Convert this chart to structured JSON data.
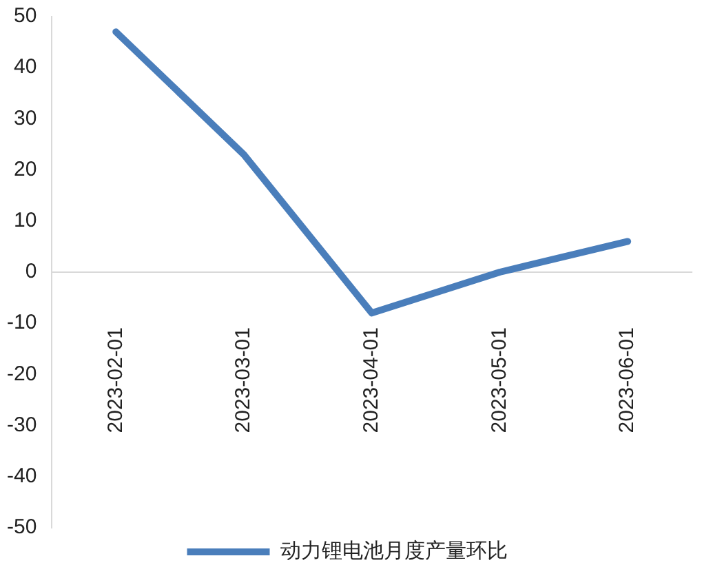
{
  "chart_data": {
    "type": "line",
    "categories": [
      "2023-02-01",
      "2023-03-01",
      "2023-04-01",
      "2023-05-01",
      "2023-06-01"
    ],
    "series": [
      {
        "name": "动力锂电池月度产量环比",
        "color": "#4a7ebb",
        "values": [
          47,
          23,
          -8,
          0,
          6
        ]
      }
    ],
    "ylim": [
      -50,
      50
    ],
    "yticks": [
      -50,
      -40,
      -30,
      -20,
      -10,
      0,
      10,
      20,
      30,
      40,
      50
    ],
    "legend": "bottom",
    "marker": "none",
    "line_style": "solid"
  }
}
